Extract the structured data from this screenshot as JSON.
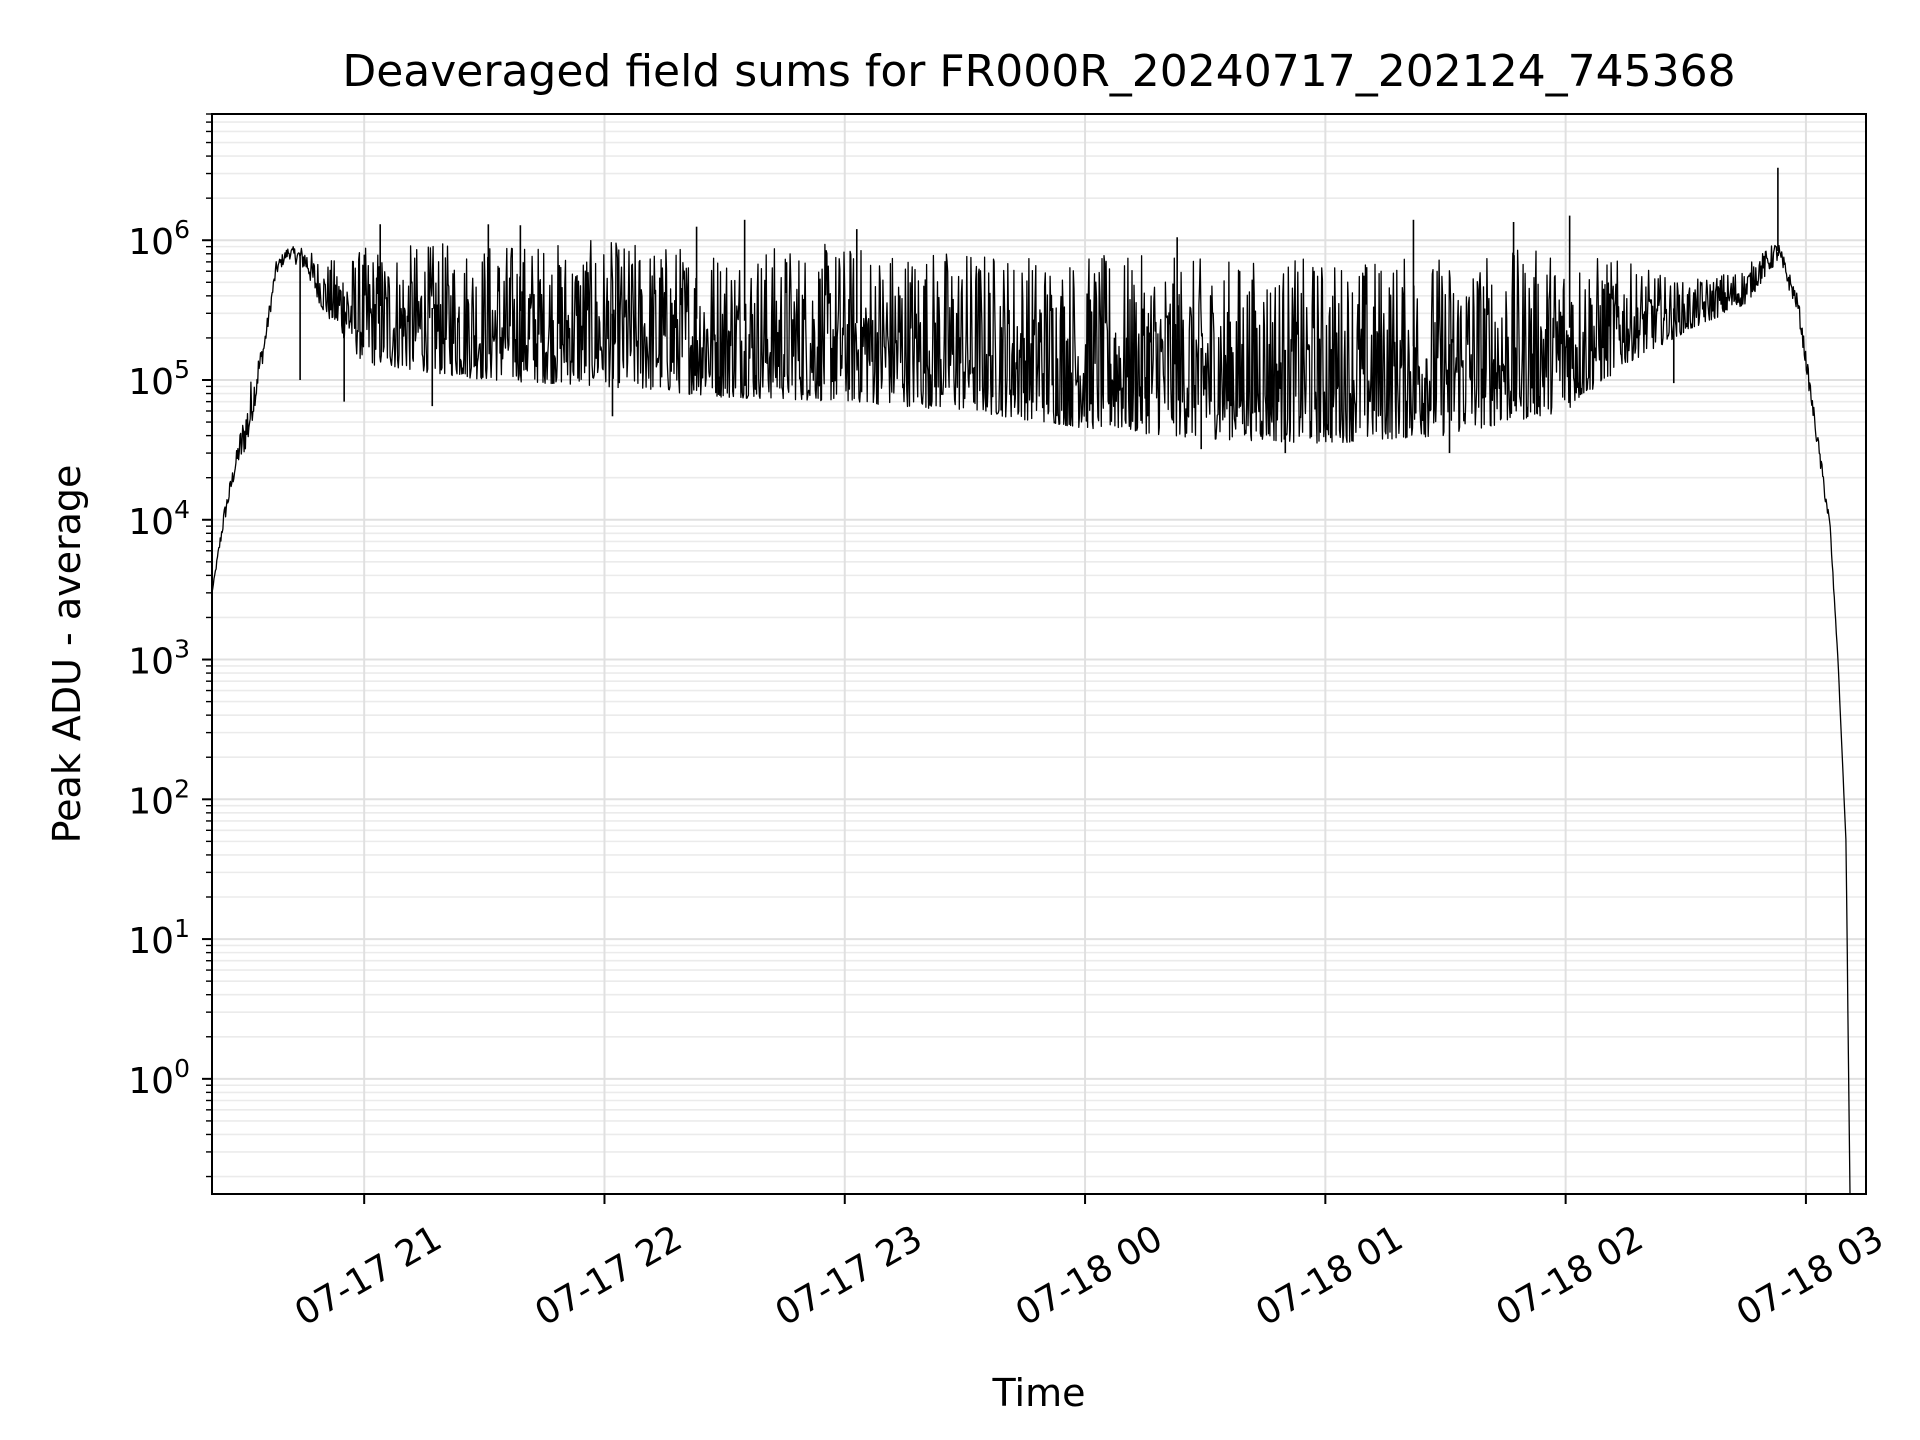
{
  "chart_data": {
    "type": "line",
    "title": "Deaveraged field sums for FR000R_20240717_202124_745368",
    "xlabel": "Time",
    "ylabel": "Peak ADU - average",
    "yscale": "log",
    "ylim": [
      0.15,
      8000000
    ],
    "xlim": [
      "2024-07-17 20:22",
      "2024-07-18 03:15"
    ],
    "grid": "on (major and minor)",
    "x_ticks": [
      {
        "label": "07-17 21",
        "value": "2024-07-17 21:00"
      },
      {
        "label": "07-17 22",
        "value": "2024-07-17 22:00"
      },
      {
        "label": "07-17 23",
        "value": "2024-07-17 23:00"
      },
      {
        "label": "07-18 00",
        "value": "2024-07-18 00:00"
      },
      {
        "label": "07-18 01",
        "value": "2024-07-18 01:00"
      },
      {
        "label": "07-18 02",
        "value": "2024-07-18 02:00"
      },
      {
        "label": "07-18 03",
        "value": "2024-07-18 03:00"
      }
    ],
    "y_ticks": [
      {
        "base": "10",
        "exp": "0",
        "value": 1
      },
      {
        "base": "10",
        "exp": "1",
        "value": 10
      },
      {
        "base": "10",
        "exp": "2",
        "value": 100
      },
      {
        "base": "10",
        "exp": "3",
        "value": 1000
      },
      {
        "base": "10",
        "exp": "4",
        "value": 10000
      },
      {
        "base": "10",
        "exp": "5",
        "value": 100000
      },
      {
        "base": "10",
        "exp": "6",
        "value": 1000000
      }
    ],
    "series": [
      {
        "color": "#000000",
        "envelope": [
          {
            "t": "2024-07-17 20:22",
            "lo": 3000,
            "hi": 3000
          },
          {
            "t": "2024-07-17 20:25",
            "lo": 9000,
            "hi": 12000
          },
          {
            "t": "2024-07-17 20:28",
            "lo": 22000,
            "hi": 30000
          },
          {
            "t": "2024-07-17 20:31",
            "lo": 35000,
            "hi": 90000
          },
          {
            "t": "2024-07-17 20:35",
            "lo": 150000,
            "hi": 200000
          },
          {
            "t": "2024-07-17 20:38",
            "lo": 550000,
            "hi": 700000
          },
          {
            "t": "2024-07-17 20:41",
            "lo": 750000,
            "hi": 900000
          },
          {
            "t": "2024-07-17 20:45",
            "lo": 600000,
            "hi": 900000
          },
          {
            "t": "2024-07-17 20:50",
            "lo": 300000,
            "hi": 700000
          },
          {
            "t": "2024-07-17 21:00",
            "lo": 130000,
            "hi": 900000
          },
          {
            "t": "2024-07-17 21:30",
            "lo": 100000,
            "hi": 1000000
          },
          {
            "t": "2024-07-17 22:00",
            "lo": 90000,
            "hi": 1000000
          },
          {
            "t": "2024-07-17 22:30",
            "lo": 75000,
            "hi": 950000
          },
          {
            "t": "2024-07-17 23:00",
            "lo": 70000,
            "hi": 950000
          },
          {
            "t": "2024-07-17 23:30",
            "lo": 60000,
            "hi": 900000
          },
          {
            "t": "2024-07-18 00:00",
            "lo": 45000,
            "hi": 800000
          },
          {
            "t": "2024-07-18 00:30",
            "lo": 38000,
            "hi": 750000
          },
          {
            "t": "2024-07-18 01:00",
            "lo": 35000,
            "hi": 750000
          },
          {
            "t": "2024-07-18 01:30",
            "lo": 40000,
            "hi": 800000
          },
          {
            "t": "2024-07-18 02:00",
            "lo": 60000,
            "hi": 900000
          },
          {
            "t": "2024-07-18 02:15",
            "lo": 130000,
            "hi": 700000
          },
          {
            "t": "2024-07-18 02:30",
            "lo": 220000,
            "hi": 500000
          },
          {
            "t": "2024-07-18 02:45",
            "lo": 350000,
            "hi": 650000
          },
          {
            "t": "2024-07-18 02:53",
            "lo": 700000,
            "hi": 1000000
          },
          {
            "t": "2024-07-18 02:58",
            "lo": 300000,
            "hi": 400000
          },
          {
            "t": "2024-07-18 03:03",
            "lo": 30000,
            "hi": 40000
          },
          {
            "t": "2024-07-18 03:06",
            "lo": 8000,
            "hi": 10000
          },
          {
            "t": "2024-07-18 03:08",
            "lo": 1000,
            "hi": 1000
          },
          {
            "t": "2024-07-18 03:10",
            "lo": 50,
            "hi": 50
          },
          {
            "t": "2024-07-18 03:11",
            "lo": 0.15,
            "hi": 0.15
          }
        ],
        "spikes": [
          {
            "t": "2024-07-17 21:04",
            "value": 1300000
          },
          {
            "t": "2024-07-17 21:31",
            "value": 1300000
          },
          {
            "t": "2024-07-17 21:39",
            "value": 1280000
          },
          {
            "t": "2024-07-17 22:23",
            "value": 1250000
          },
          {
            "t": "2024-07-17 22:35",
            "value": 1400000
          },
          {
            "t": "2024-07-17 23:03",
            "value": 1200000
          },
          {
            "t": "2024-07-18 00:23",
            "value": 1050000
          },
          {
            "t": "2024-07-18 01:22",
            "value": 1400000
          },
          {
            "t": "2024-07-18 01:47",
            "value": 1350000
          },
          {
            "t": "2024-07-18 02:01",
            "value": 1500000
          },
          {
            "t": "2024-07-18 02:53",
            "value": 3300000
          },
          {
            "t": "2024-07-17 20:44",
            "value": 100000
          },
          {
            "t": "2024-07-17 20:55",
            "value": 70000
          },
          {
            "t": "2024-07-17 21:17",
            "value": 65000
          },
          {
            "t": "2024-07-17 22:02",
            "value": 55000
          },
          {
            "t": "2024-07-18 00:29",
            "value": 32000
          },
          {
            "t": "2024-07-18 00:50",
            "value": 30000
          },
          {
            "t": "2024-07-18 01:31",
            "value": 30000
          },
          {
            "t": "2024-07-18 02:27",
            "value": 95000
          }
        ]
      }
    ]
  }
}
